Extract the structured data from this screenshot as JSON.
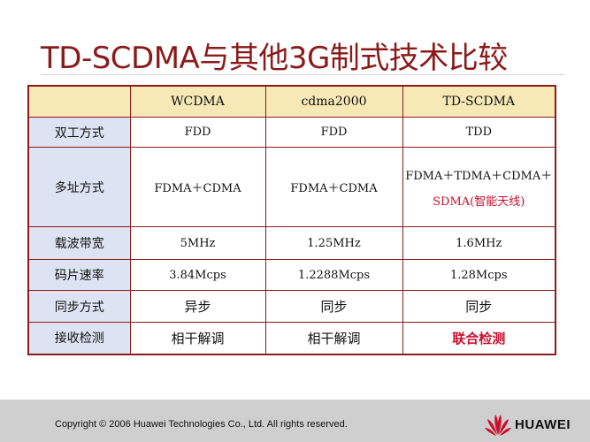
{
  "slide": {
    "title": "TD-SCDMA与其他3G制式技术比较",
    "colors": {
      "title": "#8b1a1a",
      "border": "#8b1a1a",
      "header_bg": "#f6e9b5",
      "label_bg": "#dde3f2",
      "highlight": "#c8102e",
      "footer_bg": "#cfcfcf"
    }
  },
  "table": {
    "headers": [
      "",
      "WCDMA",
      "cdma2000",
      "TD-SCDMA"
    ],
    "rows": [
      {
        "label": "双工方式",
        "values": [
          "FDD",
          "FDD",
          "TDD"
        ]
      },
      {
        "label": "多址方式",
        "values": [
          "FDMA＋CDMA",
          "FDMA＋CDMA",
          ""
        ],
        "td_line1": "FDMA＋TDMA＋CDMA＋",
        "td_line2": "SDMA(智能天线)"
      },
      {
        "label": "载波带宽",
        "values": [
          "5MHz",
          "1.25MHz",
          "1.6MHz"
        ]
      },
      {
        "label": "码片速率",
        "values": [
          "3.84Mcps",
          "1.2288Mcps",
          "1.28Mcps"
        ]
      },
      {
        "label": "同步方式",
        "values": [
          "异步",
          "同步",
          "同步"
        ]
      },
      {
        "label": "接收检测",
        "values": [
          "相干解调",
          "相干解调",
          "联合检测"
        ]
      }
    ]
  },
  "footer": {
    "copyright": "Copyright © 2006 Huawei Technologies Co., Ltd. All rights reserved.",
    "logo_text": "HUAWEI",
    "logo_icon": "huawei-petal-logo"
  }
}
